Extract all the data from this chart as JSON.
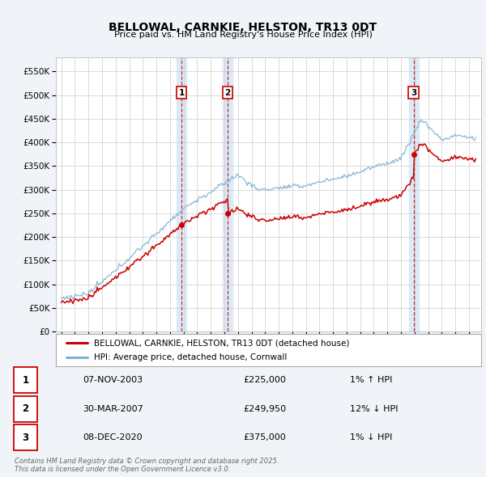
{
  "title": "BELLOWAL, CARNKIE, HELSTON, TR13 0DT",
  "subtitle": "Price paid vs. HM Land Registry's House Price Index (HPI)",
  "ylim": [
    0,
    580000
  ],
  "yticks": [
    0,
    50000,
    100000,
    150000,
    200000,
    250000,
    300000,
    350000,
    400000,
    450000,
    500000,
    550000
  ],
  "sale_dates": [
    2003.85,
    2007.24,
    2020.93
  ],
  "sale_prices": [
    225000,
    249950,
    375000
  ],
  "sale_labels": [
    "1",
    "2",
    "3"
  ],
  "legend_line1": "BELLOWAL, CARNKIE, HELSTON, TR13 0DT (detached house)",
  "legend_line2": "HPI: Average price, detached house, Cornwall",
  "table_rows": [
    {
      "num": "1",
      "date": "07-NOV-2003",
      "price": "£225,000",
      "hpi": "1% ↑ HPI"
    },
    {
      "num": "2",
      "date": "30-MAR-2007",
      "price": "£249,950",
      "hpi": "12% ↓ HPI"
    },
    {
      "num": "3",
      "date": "08-DEC-2020",
      "price": "£375,000",
      "hpi": "1% ↓ HPI"
    }
  ],
  "footnote": "Contains HM Land Registry data © Crown copyright and database right 2025.\nThis data is licensed under the Open Government Licence v3.0.",
  "red_color": "#cc0000",
  "blue_color": "#7bafd4",
  "background_color": "#f0f4f8",
  "plot_bg": "#ffffff",
  "grid_color": "#cccccc",
  "span_color": "#daeaf7"
}
